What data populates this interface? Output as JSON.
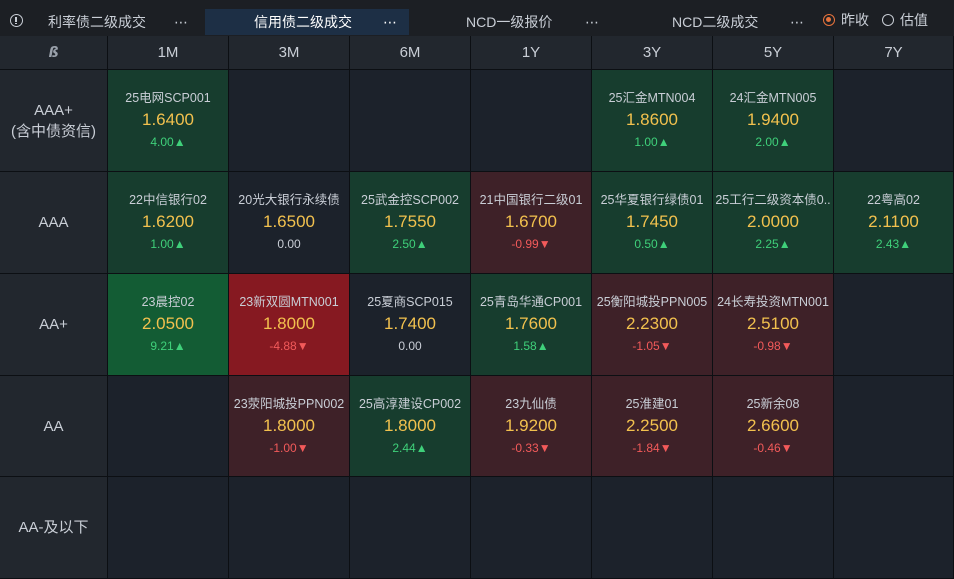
{
  "tabs": [
    {
      "label": "利率债二级成交",
      "more": "⋯"
    },
    {
      "label": "信用债二级成交",
      "more": "⋯",
      "active": true
    },
    {
      "label": "NCD一级报价",
      "more": "⋯"
    },
    {
      "label": "NCD二级成交",
      "more": "⋯"
    }
  ],
  "radio": {
    "option1": "昨收",
    "option2": "估值",
    "selected": "昨收"
  },
  "columns": [
    "1M",
    "3M",
    "6M",
    "1Y",
    "3Y",
    "5Y",
    "7Y"
  ],
  "rows": [
    {
      "label_line1": "AAA+",
      "label_line2": "(含中债资信)"
    },
    {
      "label_line1": "AAA",
      "label_line2": ""
    },
    {
      "label_line1": "AA+",
      "label_line2": ""
    },
    {
      "label_line1": "AA",
      "label_line2": ""
    },
    {
      "label_line1": "AA-及以下",
      "label_line2": ""
    }
  ],
  "cells": [
    [
      {
        "name": "25电网SCP001",
        "yield": "1.6400",
        "change": "4.00▲",
        "dir": "up",
        "bg": "green1"
      },
      null,
      null,
      null,
      {
        "name": "25汇金MTN004",
        "yield": "1.8600",
        "change": "1.00▲",
        "dir": "up",
        "bg": "green1"
      },
      {
        "name": "24汇金MTN005",
        "yield": "1.9400",
        "change": "2.00▲",
        "dir": "up",
        "bg": "green1"
      },
      null
    ],
    [
      {
        "name": "22中信银行02",
        "yield": "1.6200",
        "change": "1.00▲",
        "dir": "up",
        "bg": "green1"
      },
      {
        "name": "20光大银行永续债",
        "yield": "1.6500",
        "change": "0.00",
        "dir": "flat",
        "bg": "neutral"
      },
      {
        "name": "25武金控SCP002",
        "yield": "1.7550",
        "change": "2.50▲",
        "dir": "up",
        "bg": "green1"
      },
      {
        "name": "21中国银行二级01",
        "yield": "1.6700",
        "change": "-0.99▼",
        "dir": "down",
        "bg": "red1"
      },
      {
        "name": "25华夏银行绿债01",
        "yield": "1.7450",
        "change": "0.50▲",
        "dir": "up",
        "bg": "green1"
      },
      {
        "name": "25工行二级资本债0..",
        "yield": "2.0000",
        "change": "2.25▲",
        "dir": "up",
        "bg": "green1"
      },
      {
        "name": "22粤高02",
        "yield": "2.1100",
        "change": "2.43▲",
        "dir": "up",
        "bg": "green1"
      }
    ],
    [
      {
        "name": "23晨控02",
        "yield": "2.0500",
        "change": "9.21▲",
        "dir": "up",
        "bg": "green2"
      },
      {
        "name": "23新双圆MTN001",
        "yield": "1.8000",
        "change": "-4.88▼",
        "dir": "down",
        "bg": "red2"
      },
      {
        "name": "25夏商SCP015",
        "yield": "1.7400",
        "change": "0.00",
        "dir": "flat",
        "bg": "neutral"
      },
      {
        "name": "25青岛华通CP001",
        "yield": "1.7600",
        "change": "1.58▲",
        "dir": "up",
        "bg": "green1"
      },
      {
        "name": "25衡阳城投PPN005",
        "yield": "2.2300",
        "change": "-1.05▼",
        "dir": "down",
        "bg": "red1"
      },
      {
        "name": "24长寿投资MTN001",
        "yield": "2.5100",
        "change": "-0.98▼",
        "dir": "down",
        "bg": "red1"
      },
      null
    ],
    [
      null,
      {
        "name": "23荥阳城投PPN002",
        "yield": "1.8000",
        "change": "-1.00▼",
        "dir": "down",
        "bg": "red1"
      },
      {
        "name": "25高淳建设CP002",
        "yield": "1.8000",
        "change": "2.44▲",
        "dir": "up",
        "bg": "green1"
      },
      {
        "name": "23九仙债",
        "yield": "1.9200",
        "change": "-0.33▼",
        "dir": "down",
        "bg": "red1"
      },
      {
        "name": "25淮建01",
        "yield": "2.2500",
        "change": "-1.84▼",
        "dir": "down",
        "bg": "red1"
      },
      {
        "name": "25新余08",
        "yield": "2.6600",
        "change": "-0.46▼",
        "dir": "down",
        "bg": "red1"
      },
      null
    ],
    [
      null,
      null,
      null,
      null,
      null,
      null,
      null
    ]
  ]
}
